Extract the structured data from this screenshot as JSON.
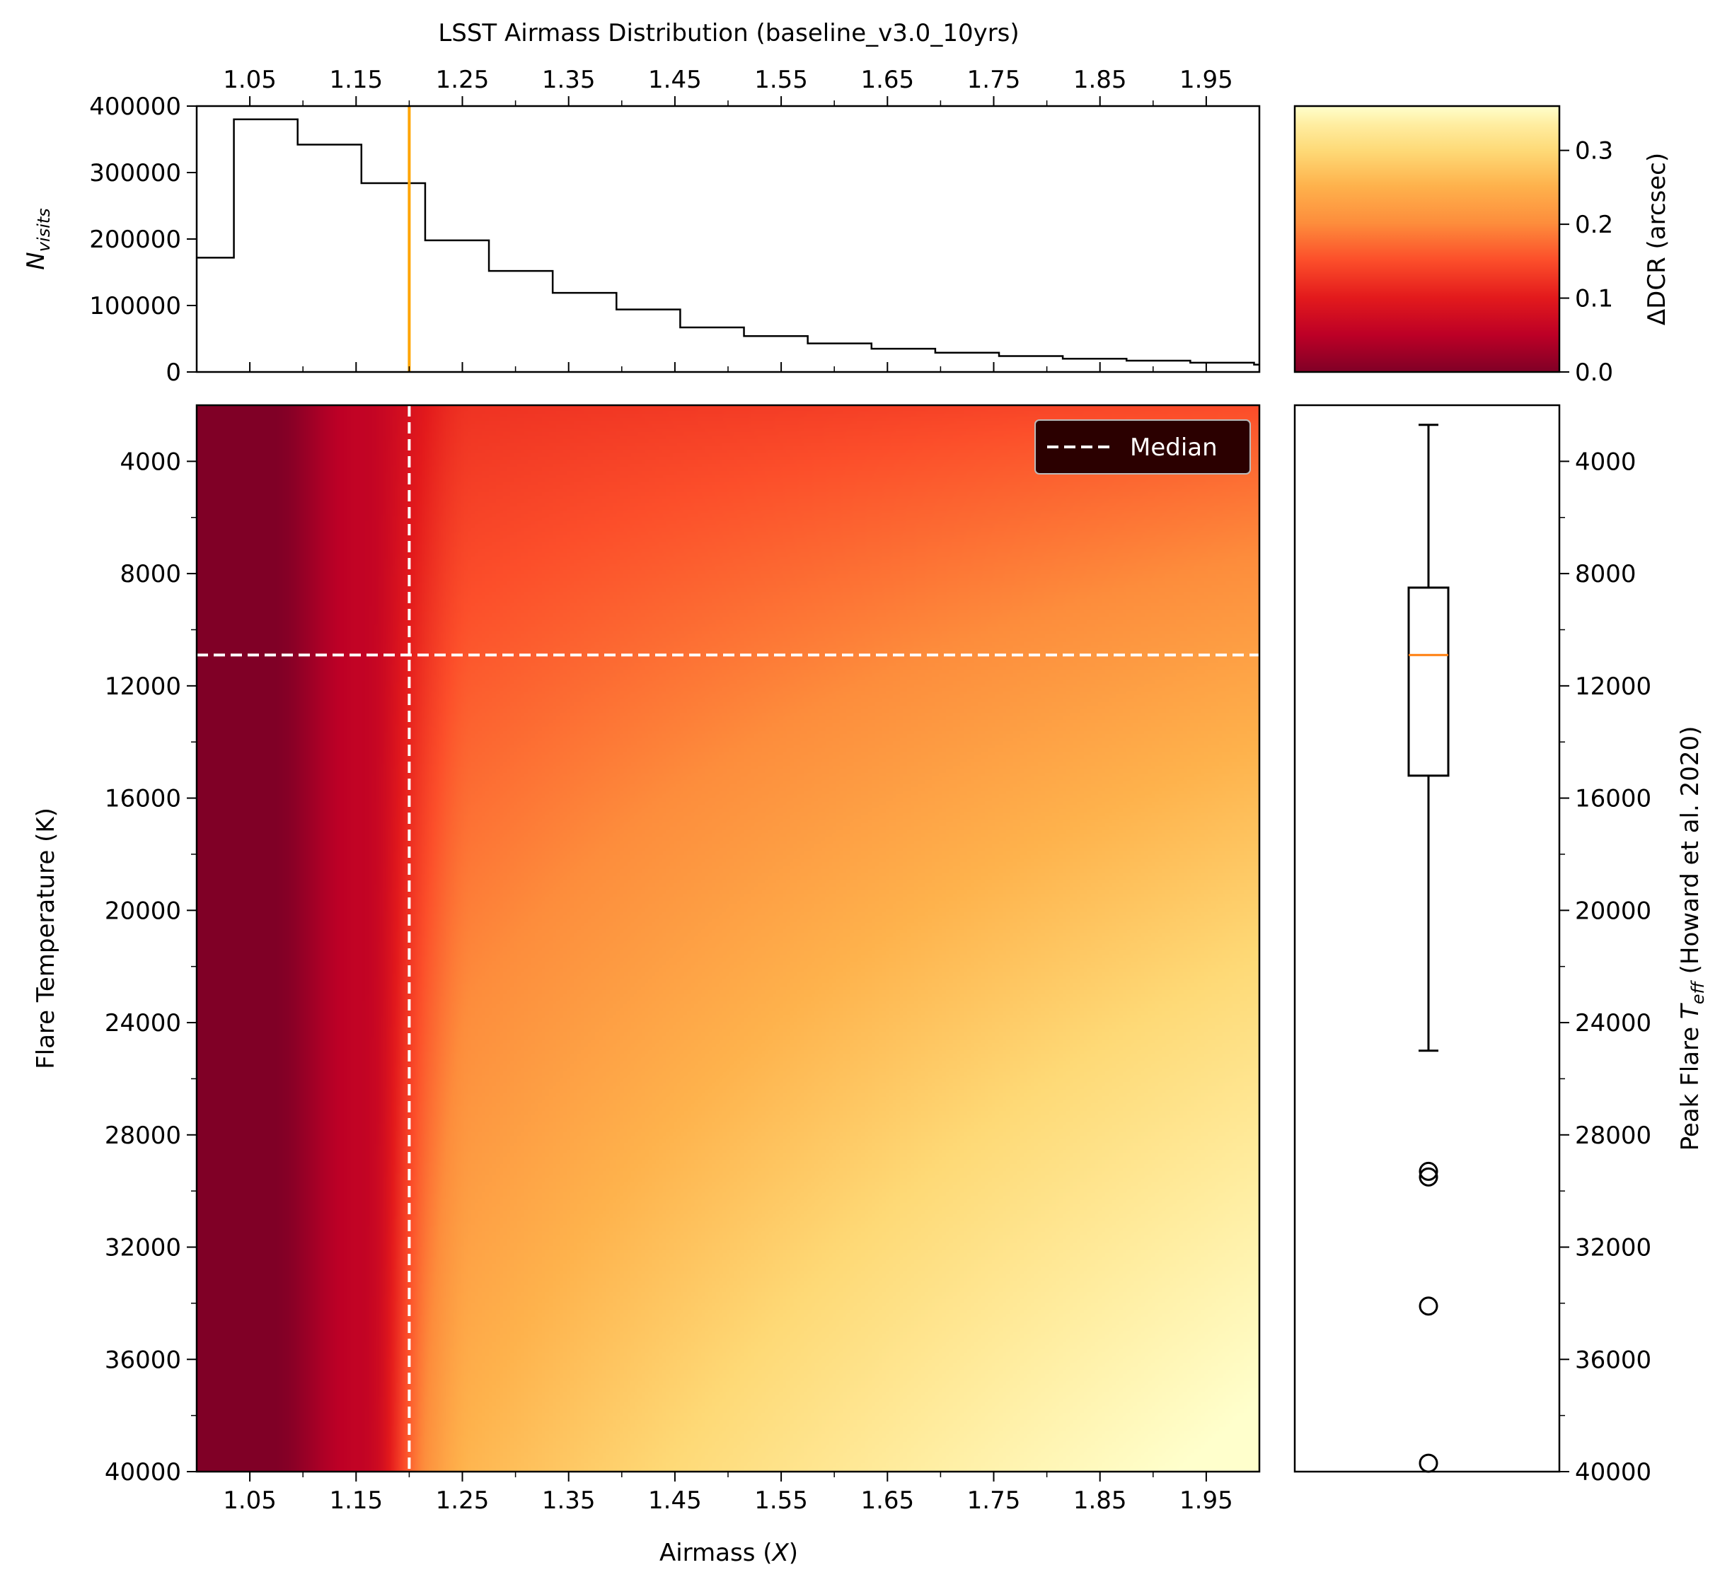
{
  "figure": {
    "title": "LSST Airmass Distribution (baseline_v3.0_10yrs)"
  },
  "chart_data": [
    {
      "type": "histogram",
      "title": "LSST Airmass Distribution (baseline_v3.0_10yrs)",
      "ylabel": "N_visits",
      "ylabel_base": "N",
      "ylabel_sub": "visits",
      "xlim": [
        1.0,
        2.0
      ],
      "ylim": [
        0,
        400000
      ],
      "xticks": [
        1.05,
        1.15,
        1.25,
        1.35,
        1.45,
        1.55,
        1.65,
        1.75,
        1.85,
        1.95
      ],
      "yticks": [
        0,
        100000,
        200000,
        300000,
        400000
      ],
      "bin_edges": [
        1.0,
        1.035,
        1.095,
        1.155,
        1.215,
        1.275,
        1.335,
        1.395,
        1.455,
        1.515,
        1.575,
        1.635,
        1.695,
        1.755,
        1.815,
        1.875,
        1.935,
        1.995,
        2.0
      ],
      "counts": [
        172000,
        380000,
        342000,
        284000,
        198000,
        152000,
        119000,
        94000,
        67000,
        54000,
        43000,
        35000,
        29000,
        24000,
        20000,
        17000,
        14000,
        11000
      ],
      "median_airmass": 1.2,
      "median_color": "#ffa500"
    },
    {
      "type": "heatmap",
      "xlabel": "Airmass (X)",
      "xlabel_base": "Airmass (",
      "xlabel_var": "X",
      "xlabel_end": ")",
      "ylabel": "Flare Temperature (K)",
      "xlim": [
        1.0,
        2.0
      ],
      "ylim": [
        40000,
        2000
      ],
      "xticks": [
        1.05,
        1.15,
        1.25,
        1.35,
        1.45,
        1.55,
        1.65,
        1.75,
        1.85,
        1.95
      ],
      "yticks": [
        4000,
        8000,
        12000,
        16000,
        20000,
        24000,
        28000,
        32000,
        36000,
        40000
      ],
      "colormap": "YlOrRd_r",
      "median_airmass": 1.2,
      "median_temperature": 10900,
      "legend": {
        "label": "Median",
        "placement": "upper right"
      }
    },
    {
      "type": "colorbar",
      "label": "ΔDCR (arcsec)",
      "range": [
        0.0,
        0.36
      ],
      "ticks": [
        0.0,
        0.1,
        0.2,
        0.3
      ],
      "tick_labels": [
        "0.0",
        "0.1",
        "0.2",
        "0.3"
      ]
    },
    {
      "type": "boxplot",
      "ylabel": "Peak Flare T_eff (Howard et al. 2020)",
      "ylabel_pre": "Peak Flare ",
      "ylabel_var": "T",
      "ylabel_sub": "eff",
      "ylabel_post": " (Howard et al. 2020)",
      "ylim": [
        40000,
        2000
      ],
      "yticks": [
        4000,
        8000,
        12000,
        16000,
        20000,
        24000,
        28000,
        32000,
        36000,
        40000
      ],
      "whisker_low": 2700,
      "q1": 8500,
      "median": 10900,
      "q3": 15200,
      "whisker_high": 25000,
      "outliers": [
        29300,
        29500,
        34100,
        39700
      ],
      "median_color": "#ff7f0e"
    }
  ],
  "colors": {
    "heatmap_stops": [
      "#800026",
      "#bd0026",
      "#e31a1c",
      "#fc4e2a",
      "#fd8d3c",
      "#feb24c",
      "#fed976",
      "#ffeda0",
      "#ffffcc"
    ]
  }
}
